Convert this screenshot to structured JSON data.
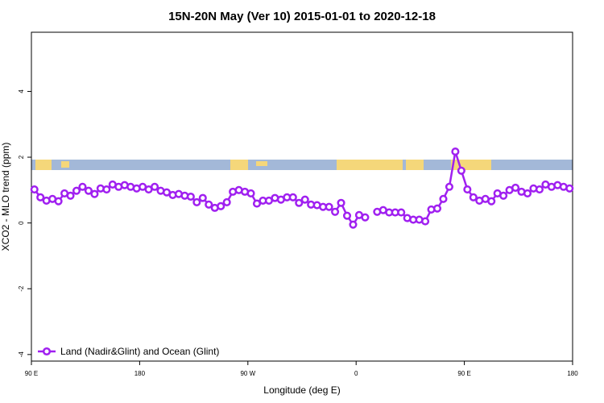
{
  "chart_data": {
    "type": "line",
    "title": "15N-20N May (Ver 10)   2015-01-01 to 2020-12-18",
    "x_label": "Longitude (deg E)",
    "y_label": "XCO2 - MLO trend (ppm)",
    "xlim": [
      90,
      540
    ],
    "ylim": [
      -4.2,
      5.8
    ],
    "xticks": [
      {
        "value": 90,
        "label": "90 E"
      },
      180,
      {
        "value": 270,
        "label": "90 W"
      },
      {
        "value": 360,
        "label": "0"
      },
      {
        "value": 450,
        "label": "90 E"
      },
      {
        "value": 540,
        "label": "180"
      }
    ],
    "yticks": [
      -4,
      -2,
      0,
      2,
      4
    ],
    "legend": "bottom-left",
    "x": [
      92.5,
      97.5,
      102.5,
      107.5,
      112.5,
      117.5,
      122.5,
      127.5,
      132.5,
      137.5,
      142.5,
      147.5,
      152.5,
      157.5,
      162.5,
      167.5,
      172.5,
      177.5,
      182.5,
      187.5,
      192.5,
      197.5,
      202.5,
      207.5,
      212.5,
      217.5,
      222.5,
      227.5,
      232.5,
      237.5,
      242.5,
      247.5,
      252.5,
      257.5,
      262.5,
      267.5,
      272.5,
      277.5,
      282.5,
      287.5,
      292.5,
      297.5,
      302.5,
      307.5,
      312.5,
      317.5,
      322.5,
      327.5,
      332.5,
      337.5,
      342.5,
      347.5,
      352.5,
      357.5,
      362.5,
      367.5,
      372.5,
      377.5,
      382.5,
      387.5,
      392.5,
      397.5,
      402.5,
      407.5,
      412.5,
      417.5,
      422.5,
      427.5,
      432.5,
      437.5,
      442.5,
      447.5,
      452.5,
      457.5,
      462.5,
      467.5,
      472.5,
      477.5,
      482.5,
      487.5,
      492.5,
      497.5,
      502.5,
      507.5,
      512.5,
      517.5,
      522.5,
      527.5,
      532.5,
      537.5
    ],
    "series": [
      {
        "name": "Land (Nadir&Glint) and Ocean (Glint)",
        "color": "#a020f0",
        "values": [
          1.02,
          0.78,
          0.68,
          0.73,
          0.66,
          0.9,
          0.83,
          0.98,
          1.1,
          0.98,
          0.88,
          1.05,
          1.02,
          1.17,
          1.1,
          1.15,
          1.1,
          1.05,
          1.1,
          1.02,
          1.1,
          0.98,
          0.93,
          0.85,
          0.88,
          0.83,
          0.8,
          0.63,
          0.76,
          0.56,
          0.46,
          0.51,
          0.63,
          0.95,
          1.0,
          0.95,
          0.9,
          0.59,
          0.68,
          0.68,
          0.76,
          0.71,
          0.78,
          0.78,
          0.61,
          0.71,
          0.56,
          0.54,
          0.49,
          0.49,
          0.34,
          0.61,
          0.22,
          -0.05,
          0.24,
          0.17,
          null,
          0.34,
          0.39,
          0.32,
          0.32,
          0.32,
          0.15,
          0.1,
          0.1,
          0.05,
          0.41,
          0.44,
          0.73,
          1.1,
          2.17,
          1.59,
          1.02,
          0.78,
          0.68,
          0.73,
          0.66,
          0.9,
          0.83,
          1.0,
          1.07,
          0.95,
          0.9,
          1.05,
          1.02,
          1.17,
          1.1,
          1.15,
          1.1,
          1.05
        ]
      }
    ]
  }
}
